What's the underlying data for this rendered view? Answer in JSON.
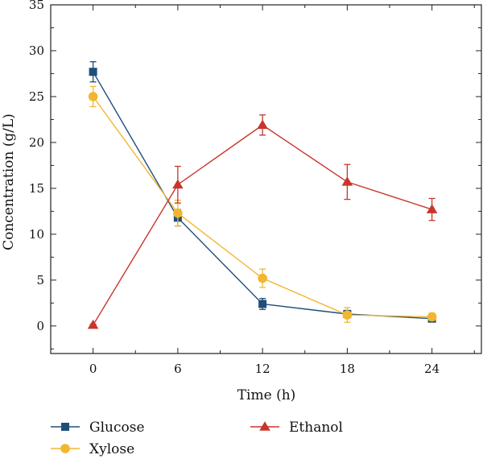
{
  "chart_data": {
    "type": "line",
    "title": "",
    "xlabel": "Time (h)",
    "ylabel": "Concentration (g/L)",
    "x": [
      0,
      6,
      12,
      18,
      24
    ],
    "xticks": [
      0,
      6,
      12,
      18,
      24
    ],
    "xlim": [
      -3,
      27.5
    ],
    "yticks": [
      0,
      5,
      10,
      15,
      20,
      25,
      30,
      35
    ],
    "ylim": [
      -3,
      35
    ],
    "grid": false,
    "legend_position": "bottom",
    "series": [
      {
        "name": "Glucose",
        "color": "#1f4e79",
        "marker": "square",
        "values": [
          27.7,
          11.8,
          2.4,
          1.3,
          0.8
        ],
        "errors": [
          1.1,
          0.9,
          0.6,
          0.4,
          0.3
        ]
      },
      {
        "name": "Xylose",
        "color": "#f2b632",
        "marker": "circle",
        "values": [
          25.0,
          12.3,
          5.2,
          1.2,
          1.0
        ],
        "errors": [
          1.1,
          1.4,
          1.0,
          0.8,
          0.4
        ]
      },
      {
        "name": "Ethanol",
        "color": "#c8352b",
        "marker": "triangle",
        "values": [
          0.1,
          15.4,
          21.9,
          15.7,
          12.7
        ],
        "errors": [
          0.1,
          2.0,
          1.1,
          1.9,
          1.2
        ]
      }
    ]
  }
}
